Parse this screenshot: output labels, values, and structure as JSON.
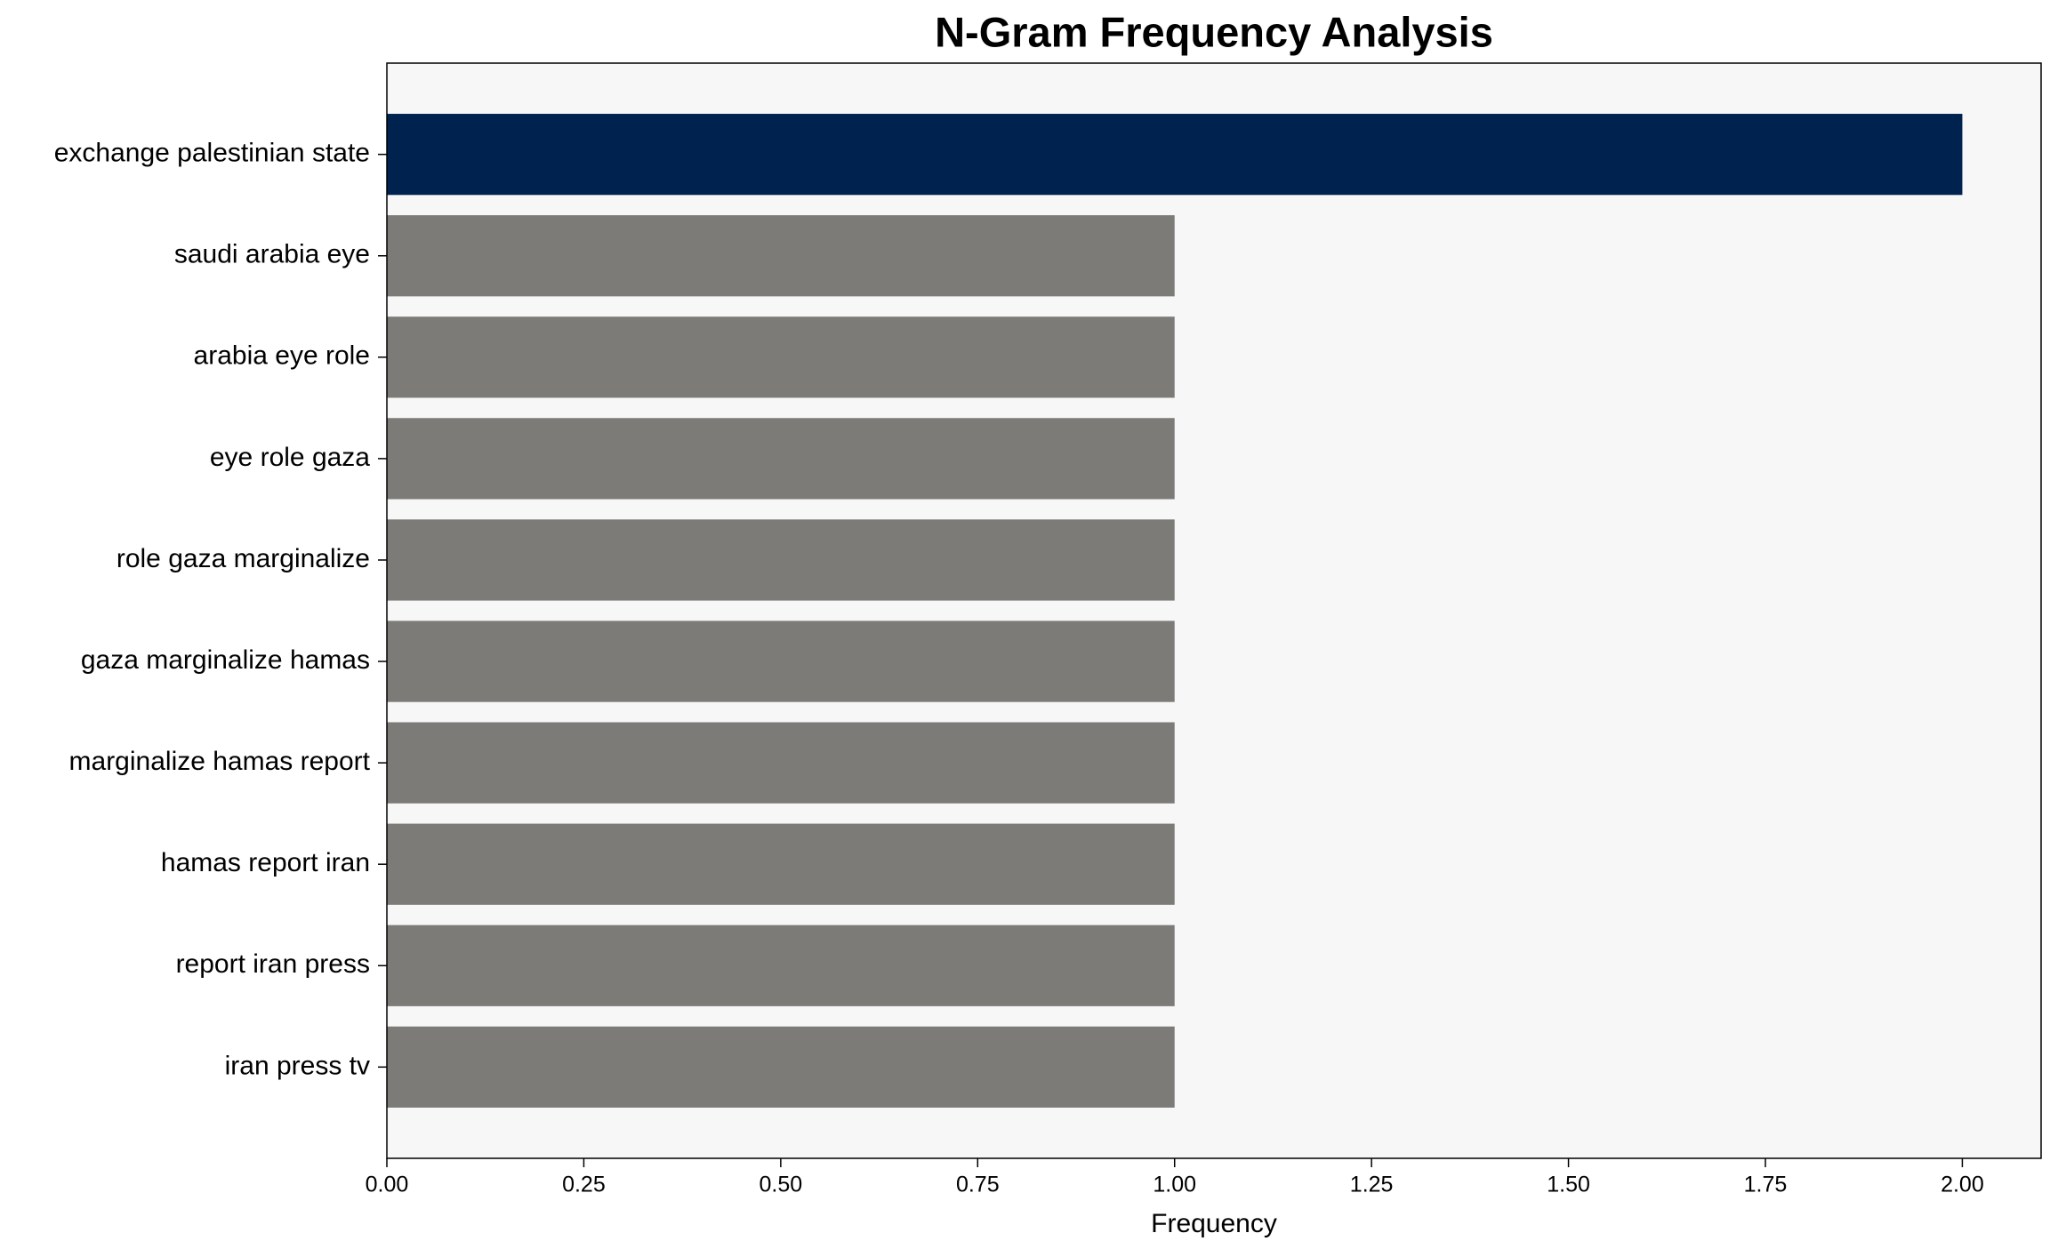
{
  "chart_data": {
    "type": "barh",
    "title": "N-Gram Frequency Analysis",
    "xlabel": "Frequency",
    "categories": [
      "exchange palestinian state",
      "saudi arabia eye",
      "arabia eye role",
      "eye role gaza",
      "role gaza marginalize",
      "gaza marginalize hamas",
      "marginalize hamas report",
      "hamas report iran",
      "report iran press",
      "iran press tv"
    ],
    "values": [
      2,
      1,
      1,
      1,
      1,
      1,
      1,
      1,
      1,
      1
    ],
    "colors": [
      "#00224e",
      "#7c7b78",
      "#7c7b78",
      "#7c7b78",
      "#7c7b78",
      "#7c7b78",
      "#7c7b78",
      "#7c7b78",
      "#7c7b78",
      "#7c7b78"
    ],
    "xlim": [
      0,
      2.1
    ],
    "xticks": [
      {
        "value": 0,
        "label": "0.00"
      },
      {
        "value": 0.25,
        "label": "0.25"
      },
      {
        "value": 0.5,
        "label": "0.50"
      },
      {
        "value": 0.75,
        "label": "0.75"
      },
      {
        "value": 1,
        "label": "1.00"
      },
      {
        "value": 1.25,
        "label": "1.25"
      },
      {
        "value": 1.5,
        "label": "1.50"
      },
      {
        "value": 1.75,
        "label": "1.75"
      },
      {
        "value": 2,
        "label": "2.00"
      }
    ],
    "background": "#f7f7f7"
  }
}
